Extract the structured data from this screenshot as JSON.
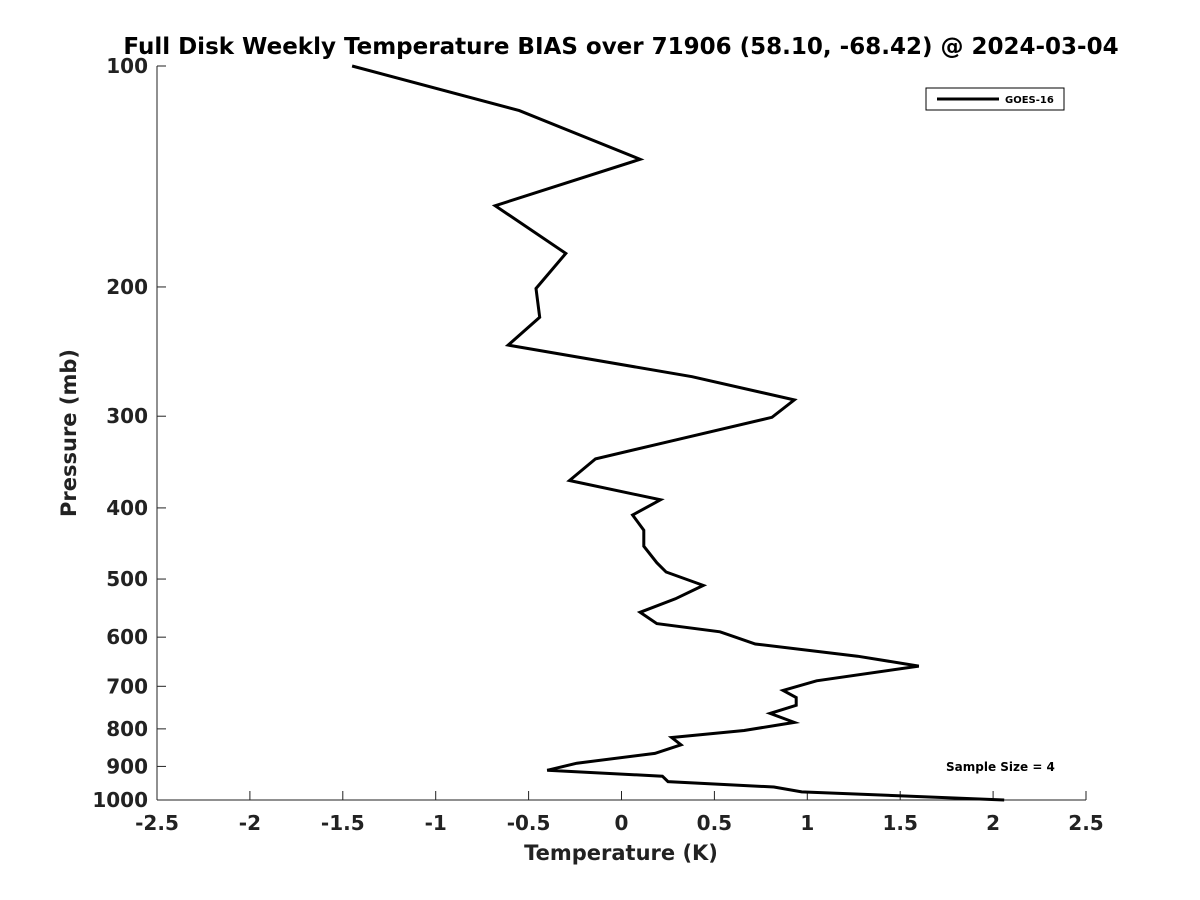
{
  "chart_data": {
    "type": "line",
    "title": "Full Disk Weekly Temperature BIAS over 71906 (58.10, -68.42) @ 2024-03-04",
    "xlabel": "Temperature (K)",
    "ylabel": "Pressure (mb)",
    "xlim": [
      -2.5,
      2.5
    ],
    "ylim": [
      1000,
      100
    ],
    "yscale": "log",
    "x_ticks": [
      -2.5,
      -2,
      -1.5,
      -1,
      -0.5,
      0,
      0.5,
      1,
      1.5,
      2,
      2.5
    ],
    "x_tick_labels": [
      "-2.5",
      "-2",
      "-1.5",
      "-1",
      "-0.5",
      "0",
      "0.5",
      "1",
      "1.5",
      "2",
      "2.5"
    ],
    "y_ticks": [
      100,
      200,
      300,
      400,
      500,
      600,
      700,
      800,
      900,
      1000
    ],
    "y_tick_labels": [
      "100",
      "200",
      "300",
      "400",
      "500",
      "600",
      "700",
      "800",
      "900",
      "1000"
    ],
    "grid": false,
    "legend": {
      "position": "top-right",
      "entries": [
        "GOES-16"
      ]
    },
    "annotation": "Sample Size = 4",
    "series": [
      {
        "name": "GOES-16",
        "color": "#000000",
        "points": [
          [
            -1.45,
            100
          ],
          [
            -0.55,
            115
          ],
          [
            0.1,
            134
          ],
          [
            -0.68,
            155
          ],
          [
            -0.3,
            180
          ],
          [
            -0.46,
            201
          ],
          [
            -0.44,
            220
          ],
          [
            -0.61,
            240
          ],
          [
            0.38,
            265
          ],
          [
            0.93,
            285
          ],
          [
            0.81,
            301
          ],
          [
            0.23,
            326
          ],
          [
            -0.14,
            343
          ],
          [
            -0.28,
            367
          ],
          [
            0.21,
            390
          ],
          [
            0.06,
            409
          ],
          [
            0.12,
            429
          ],
          [
            0.12,
            451
          ],
          [
            0.19,
            475
          ],
          [
            0.24,
            489
          ],
          [
            0.44,
            510
          ],
          [
            0.29,
            532
          ],
          [
            0.1,
            555
          ],
          [
            0.19,
            575
          ],
          [
            0.53,
            590
          ],
          [
            0.72,
            613
          ],
          [
            1.27,
            637
          ],
          [
            1.6,
            657
          ],
          [
            1.05,
            688
          ],
          [
            0.87,
            709
          ],
          [
            0.94,
            725
          ],
          [
            0.94,
            743
          ],
          [
            0.8,
            762
          ],
          [
            0.93,
            784
          ],
          [
            0.66,
            804
          ],
          [
            0.27,
            822
          ],
          [
            0.32,
            841
          ],
          [
            0.18,
            864
          ],
          [
            -0.24,
            891
          ],
          [
            -0.4,
            911
          ],
          [
            0.22,
            928
          ],
          [
            0.25,
            944
          ],
          [
            0.82,
            960
          ],
          [
            0.97,
            975
          ],
          [
            2.06,
            1000
          ]
        ]
      }
    ]
  }
}
